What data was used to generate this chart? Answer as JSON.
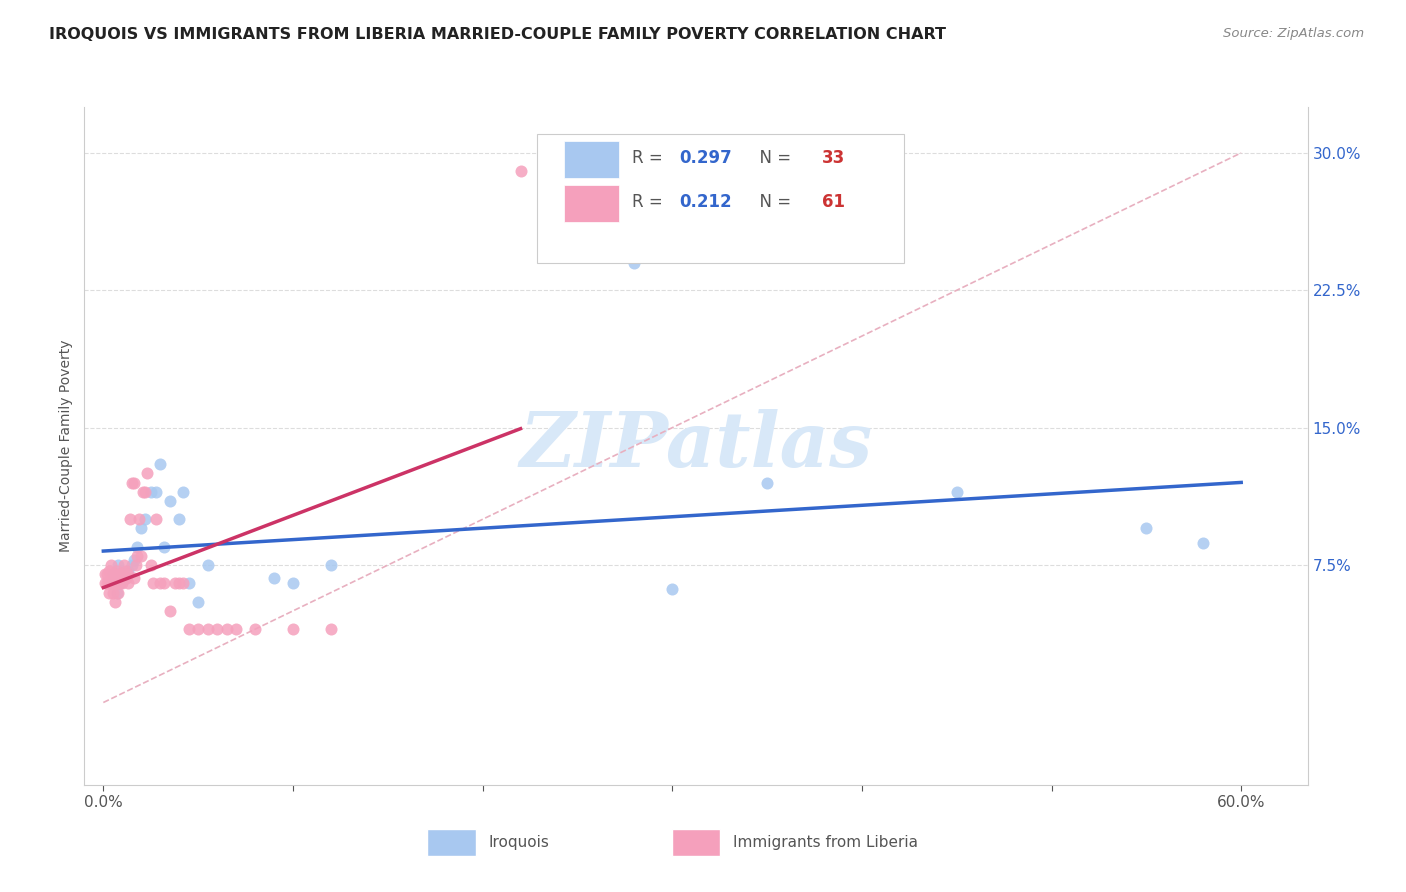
{
  "title": "IROQUOIS VS IMMIGRANTS FROM LIBERIA MARRIED-COUPLE FAMILY POVERTY CORRELATION CHART",
  "source": "Source: ZipAtlas.com",
  "ylabel": "Married-Couple Family Poverty",
  "y_tick_labels": [
    "7.5%",
    "15.0%",
    "22.5%",
    "30.0%"
  ],
  "y_tick_vals": [
    0.075,
    0.15,
    0.225,
    0.3
  ],
  "x_min": -0.01,
  "x_max": 0.635,
  "y_min": -0.045,
  "y_max": 0.325,
  "legend_label1": "Iroquois",
  "legend_label2": "Immigrants from Liberia",
  "R1": "0.297",
  "N1": "33",
  "R2": "0.212",
  "N2": "61",
  "color1": "#a8c8f0",
  "color2": "#f5a0bc",
  "line_color1": "#3366cc",
  "line_color2": "#cc3366",
  "grid_color": "#dddddd",
  "watermark_color": "#d8e8f8",
  "iroquois_x": [
    0.004,
    0.005,
    0.006,
    0.007,
    0.008,
    0.009,
    0.01,
    0.012,
    0.013,
    0.015,
    0.016,
    0.018,
    0.02,
    0.022,
    0.025,
    0.028,
    0.03,
    0.032,
    0.035,
    0.04,
    0.042,
    0.045,
    0.05,
    0.055,
    0.09,
    0.1,
    0.12,
    0.28,
    0.3,
    0.35,
    0.45,
    0.55,
    0.58
  ],
  "iroquois_y": [
    0.065,
    0.07,
    0.068,
    0.06,
    0.075,
    0.065,
    0.07,
    0.068,
    0.072,
    0.075,
    0.078,
    0.085,
    0.095,
    0.1,
    0.115,
    0.115,
    0.13,
    0.085,
    0.11,
    0.1,
    0.115,
    0.065,
    0.055,
    0.075,
    0.068,
    0.065,
    0.075,
    0.24,
    0.062,
    0.12,
    0.115,
    0.095,
    0.087
  ],
  "liberia_x": [
    0.001,
    0.001,
    0.002,
    0.002,
    0.003,
    0.003,
    0.003,
    0.004,
    0.004,
    0.005,
    0.005,
    0.005,
    0.006,
    0.006,
    0.006,
    0.007,
    0.007,
    0.007,
    0.008,
    0.008,
    0.008,
    0.009,
    0.009,
    0.01,
    0.01,
    0.01,
    0.011,
    0.012,
    0.012,
    0.013,
    0.013,
    0.014,
    0.015,
    0.016,
    0.016,
    0.017,
    0.018,
    0.019,
    0.02,
    0.021,
    0.022,
    0.023,
    0.025,
    0.026,
    0.028,
    0.03,
    0.032,
    0.035,
    0.038,
    0.04,
    0.042,
    0.045,
    0.05,
    0.055,
    0.06,
    0.065,
    0.07,
    0.08,
    0.1,
    0.12,
    0.22
  ],
  "liberia_y": [
    0.065,
    0.07,
    0.065,
    0.07,
    0.06,
    0.065,
    0.072,
    0.068,
    0.075,
    0.06,
    0.065,
    0.07,
    0.055,
    0.065,
    0.07,
    0.065,
    0.068,
    0.072,
    0.06,
    0.065,
    0.07,
    0.065,
    0.07,
    0.068,
    0.07,
    0.065,
    0.075,
    0.068,
    0.072,
    0.065,
    0.07,
    0.1,
    0.12,
    0.068,
    0.12,
    0.075,
    0.08,
    0.1,
    0.08,
    0.115,
    0.115,
    0.125,
    0.075,
    0.065,
    0.1,
    0.065,
    0.065,
    0.05,
    0.065,
    0.065,
    0.065,
    0.04,
    0.04,
    0.04,
    0.04,
    0.04,
    0.04,
    0.04,
    0.04,
    0.04,
    0.29
  ]
}
